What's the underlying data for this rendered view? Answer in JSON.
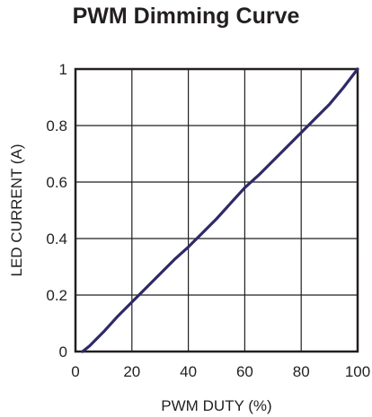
{
  "chart_data": {
    "type": "line",
    "title": "PWM Dimming Curve",
    "xlabel": "PWM DUTY (%)",
    "ylabel": "LED CURRENT (A)",
    "xlim": [
      0,
      100
    ],
    "ylim": [
      0,
      1
    ],
    "xticks": [
      0,
      20,
      40,
      60,
      80,
      100
    ],
    "yticks": [
      0,
      0.2,
      0.4,
      0.6,
      0.8,
      1
    ],
    "xtick_labels": [
      "0",
      "20",
      "40",
      "60",
      "80",
      "100"
    ],
    "ytick_labels": [
      "0",
      "0.2",
      "0.4",
      "0.6",
      "0.8",
      "1"
    ],
    "grid": true,
    "series": [
      {
        "color": "#2e2a66",
        "x": [
          2.5,
          5,
          10,
          15,
          20,
          25,
          30,
          35,
          40,
          45,
          50,
          55,
          60,
          65,
          70,
          75,
          80,
          85,
          90,
          95,
          100
        ],
        "y": [
          0,
          0.02,
          0.07,
          0.125,
          0.175,
          0.225,
          0.275,
          0.325,
          0.37,
          0.42,
          0.47,
          0.525,
          0.58,
          0.625,
          0.675,
          0.725,
          0.775,
          0.825,
          0.875,
          0.935,
          1.0
        ]
      }
    ]
  }
}
